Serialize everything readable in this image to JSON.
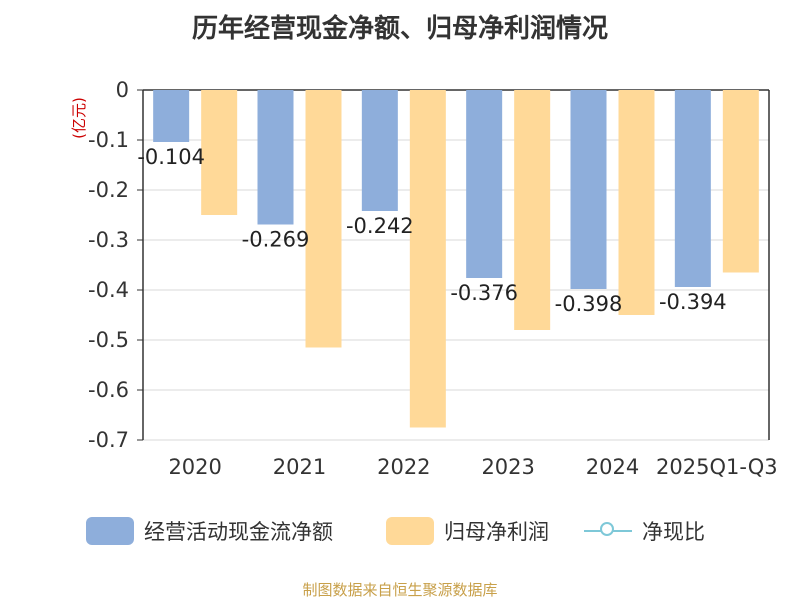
{
  "chart_data": {
    "type": "bar",
    "title": "历年经营现金净额、归母净利润情况",
    "unit_label": "(亿元)",
    "categories": [
      "2020",
      "2021",
      "2022",
      "2023",
      "2024",
      "2025Q1-Q3"
    ],
    "series": [
      {
        "name": "经营活动现金流净额",
        "color": "#8eaedb",
        "values": [
          -0.104,
          -0.269,
          -0.242,
          -0.376,
          -0.398,
          -0.394
        ],
        "labels": [
          "-0.104",
          "-0.269",
          "-0.242",
          "-0.376",
          "-0.398",
          "-0.394"
        ]
      },
      {
        "name": "归母净利润",
        "color": "#ffd998",
        "values": [
          -0.25,
          -0.515,
          -0.675,
          -0.48,
          -0.45,
          -0.365
        ]
      }
    ],
    "line_series": {
      "name": "净现比",
      "color": "#7ec8d8"
    },
    "ylim": [
      -0.7,
      0
    ],
    "yticks": [
      0,
      -0.1,
      -0.2,
      -0.3,
      -0.4,
      -0.5,
      -0.6,
      -0.7
    ],
    "ytick_labels": [
      "0",
      "-0.1",
      "-0.2",
      "-0.3",
      "-0.4",
      "-0.5",
      "-0.6",
      "-0.7"
    ],
    "grid": true
  },
  "footer": {
    "source": "制图数据来自恒生聚源数据库"
  }
}
